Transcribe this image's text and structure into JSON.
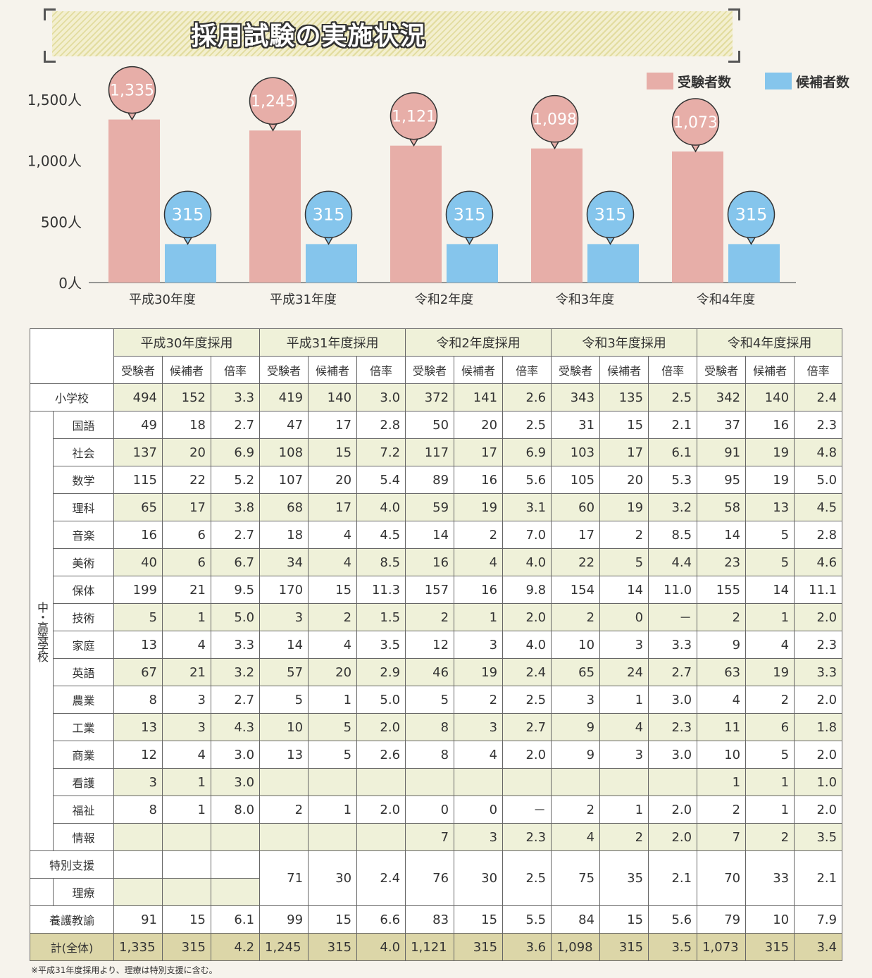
{
  "title": "採用試験の実施状況",
  "legend": [
    {
      "label": "受験者数",
      "color": "#e7aea8"
    },
    {
      "label": "候補者数",
      "color": "#85c5ec"
    }
  ],
  "chart_data": {
    "type": "bar",
    "categories": [
      "平成30年度",
      "平成31年度",
      "令和2年度",
      "令和3年度",
      "令和4年度"
    ],
    "series": [
      {
        "name": "受験者数",
        "values": [
          1335,
          1245,
          1121,
          1098,
          1073
        ],
        "labels": [
          "1,335",
          "1,245",
          "1,121",
          "1,098",
          "1,073"
        ],
        "color": "#e7aea8"
      },
      {
        "name": "候補者数",
        "values": [
          315,
          315,
          315,
          315,
          315
        ],
        "labels": [
          "315",
          "315",
          "315",
          "315",
          "315"
        ],
        "color": "#85c5ec"
      }
    ],
    "yticks": [
      "0人",
      "500人",
      "1,000人",
      "1,500人"
    ],
    "ytick_values": [
      0,
      500,
      1000,
      1500
    ],
    "ylim": [
      0,
      1500
    ]
  },
  "table": {
    "years": [
      "平成30年度採用",
      "平成31年度採用",
      "令和2年度採用",
      "令和3年度採用",
      "令和4年度採用"
    ],
    "subcols": [
      "受験者",
      "候補者",
      "倍率"
    ],
    "group_label": "中・高等学校",
    "elementary": {
      "label": "小学校",
      "cells": [
        "494",
        "152",
        "3.3",
        "419",
        "140",
        "3.0",
        "372",
        "141",
        "2.6",
        "343",
        "135",
        "2.5",
        "342",
        "140",
        "2.4"
      ]
    },
    "subjects": [
      {
        "label": "国語",
        "cells": [
          "49",
          "18",
          "2.7",
          "47",
          "17",
          "2.8",
          "50",
          "20",
          "2.5",
          "31",
          "15",
          "2.1",
          "37",
          "16",
          "2.3"
        ]
      },
      {
        "label": "社会",
        "cells": [
          "137",
          "20",
          "6.9",
          "108",
          "15",
          "7.2",
          "117",
          "17",
          "6.9",
          "103",
          "17",
          "6.1",
          "91",
          "19",
          "4.8"
        ]
      },
      {
        "label": "数学",
        "cells": [
          "115",
          "22",
          "5.2",
          "107",
          "20",
          "5.4",
          "89",
          "16",
          "5.6",
          "105",
          "20",
          "5.3",
          "95",
          "19",
          "5.0"
        ]
      },
      {
        "label": "理科",
        "cells": [
          "65",
          "17",
          "3.8",
          "68",
          "17",
          "4.0",
          "59",
          "19",
          "3.1",
          "60",
          "19",
          "3.2",
          "58",
          "13",
          "4.5"
        ]
      },
      {
        "label": "音楽",
        "cells": [
          "16",
          "6",
          "2.7",
          "18",
          "4",
          "4.5",
          "14",
          "2",
          "7.0",
          "17",
          "2",
          "8.5",
          "14",
          "5",
          "2.8"
        ]
      },
      {
        "label": "美術",
        "cells": [
          "40",
          "6",
          "6.7",
          "34",
          "4",
          "8.5",
          "16",
          "4",
          "4.0",
          "22",
          "5",
          "4.4",
          "23",
          "5",
          "4.6"
        ]
      },
      {
        "label": "保体",
        "cells": [
          "199",
          "21",
          "9.5",
          "170",
          "15",
          "11.3",
          "157",
          "16",
          "9.8",
          "154",
          "14",
          "11.0",
          "155",
          "14",
          "11.1"
        ]
      },
      {
        "label": "技術",
        "cells": [
          "5",
          "1",
          "5.0",
          "3",
          "2",
          "1.5",
          "2",
          "1",
          "2.0",
          "2",
          "0",
          "－",
          "2",
          "1",
          "2.0"
        ]
      },
      {
        "label": "家庭",
        "cells": [
          "13",
          "4",
          "3.3",
          "14",
          "4",
          "3.5",
          "12",
          "3",
          "4.0",
          "10",
          "3",
          "3.3",
          "9",
          "4",
          "2.3"
        ]
      },
      {
        "label": "英語",
        "cells": [
          "67",
          "21",
          "3.2",
          "57",
          "20",
          "2.9",
          "46",
          "19",
          "2.4",
          "65",
          "24",
          "2.7",
          "63",
          "19",
          "3.3"
        ]
      },
      {
        "label": "農業",
        "cells": [
          "8",
          "3",
          "2.7",
          "5",
          "1",
          "5.0",
          "5",
          "2",
          "2.5",
          "3",
          "1",
          "3.0",
          "4",
          "2",
          "2.0"
        ]
      },
      {
        "label": "工業",
        "cells": [
          "13",
          "3",
          "4.3",
          "10",
          "5",
          "2.0",
          "8",
          "3",
          "2.7",
          "9",
          "4",
          "2.3",
          "11",
          "6",
          "1.8"
        ]
      },
      {
        "label": "商業",
        "cells": [
          "12",
          "4",
          "3.0",
          "13",
          "5",
          "2.6",
          "8",
          "4",
          "2.0",
          "9",
          "3",
          "3.0",
          "10",
          "5",
          "2.0"
        ]
      },
      {
        "label": "看護",
        "cells": [
          "3",
          "1",
          "3.0",
          "",
          "",
          "",
          "",
          "",
          "",
          "",
          "",
          "",
          "1",
          "1",
          "1.0"
        ]
      },
      {
        "label": "福祉",
        "cells": [
          "8",
          "1",
          "8.0",
          "2",
          "1",
          "2.0",
          "0",
          "0",
          "－",
          "2",
          "1",
          "2.0",
          "2",
          "1",
          "2.0"
        ]
      },
      {
        "label": "情報",
        "cells": [
          "",
          "",
          "",
          "",
          "",
          "",
          "7",
          "3",
          "2.3",
          "4",
          "2",
          "2.0",
          "7",
          "2",
          "3.5"
        ]
      }
    ],
    "special": {
      "label": "特別支援",
      "label2": "理療",
      "cells": [
        "71",
        "30",
        "2.4",
        "76",
        "30",
        "2.5",
        "75",
        "35",
        "2.1",
        "70",
        "33",
        "2.1"
      ]
    },
    "yogo": {
      "label": "養護教諭",
      "cells": [
        "91",
        "15",
        "6.1",
        "99",
        "15",
        "6.6",
        "83",
        "15",
        "5.5",
        "84",
        "15",
        "5.6",
        "79",
        "10",
        "7.9"
      ]
    },
    "total": {
      "label": "計(全体)",
      "cells": [
        "1,335",
        "315",
        "4.2",
        "1,245",
        "315",
        "4.0",
        "1,121",
        "315",
        "3.6",
        "1,098",
        "315",
        "3.5",
        "1,073",
        "315",
        "3.4"
      ]
    }
  },
  "note": "※平成31年度採用より、理療は特別支援に含む。"
}
